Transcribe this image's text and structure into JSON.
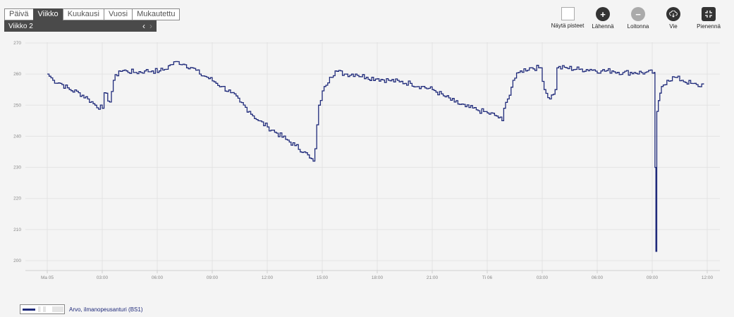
{
  "tabs": [
    "Päivä",
    "Viikko",
    "Kuukausi",
    "Vuosi",
    "Mukautettu"
  ],
  "active_tab": "Viikko",
  "week_label": "Viikko  2",
  "nav_prev": "‹",
  "nav_next": "›",
  "toolbar": {
    "show_points": "Näytä pisteet",
    "zoom_in": "Lähennä",
    "zoom_out": "Loitonna",
    "export": "Vie",
    "minimize": "Pienennä"
  },
  "legend": {
    "label": "Arvo, ilmanopeusanturi (BS1)"
  },
  "colors": {
    "series": "#1f2a7a",
    "grid": "#e3e3e3",
    "axis": "#cfcfcf"
  },
  "chart_data": {
    "type": "line",
    "ylim": [
      198,
      270
    ],
    "yticks": [
      200,
      210,
      220,
      230,
      240,
      250,
      260,
      270
    ],
    "xlim": [
      0,
      34
    ],
    "xticks": [
      {
        "v": 0,
        "label": "Ma 05"
      },
      {
        "v": 3,
        "label": "03:00"
      },
      {
        "v": 6,
        "label": "06:00"
      },
      {
        "v": 9,
        "label": "09:00"
      },
      {
        "v": 12,
        "label": "12:00"
      },
      {
        "v": 15,
        "label": "15:00"
      },
      {
        "v": 18,
        "label": "18:00"
      },
      {
        "v": 21,
        "label": "21:00"
      },
      {
        "v": 24,
        "label": "Ti 06"
      },
      {
        "v": 27,
        "label": "03:00"
      },
      {
        "v": 30,
        "label": "06:00"
      },
      {
        "v": 33,
        "label": "09:00"
      },
      {
        "v": 36,
        "label": "12:00"
      }
    ],
    "series": [
      {
        "name": "Arvo, ilmanopeusanturi (BS1)",
        "points": [
          [
            0.0,
            260
          ],
          [
            0.3,
            258
          ],
          [
            0.7,
            257
          ],
          [
            1.2,
            255
          ],
          [
            1.7,
            254
          ],
          [
            2.2,
            252
          ],
          [
            2.6,
            250
          ],
          [
            3.0,
            249
          ],
          [
            3.1,
            254
          ],
          [
            3.4,
            251
          ],
          [
            3.6,
            258
          ],
          [
            3.9,
            261
          ],
          [
            4.3,
            261
          ],
          [
            4.8,
            260.5
          ],
          [
            5.3,
            261
          ],
          [
            5.7,
            261
          ],
          [
            6.1,
            261
          ],
          [
            6.4,
            261.5
          ],
          [
            6.7,
            263
          ],
          [
            7.1,
            264
          ],
          [
            7.5,
            263
          ],
          [
            7.9,
            262
          ],
          [
            8.3,
            260
          ],
          [
            8.7,
            259
          ],
          [
            9.1,
            257.5
          ],
          [
            9.5,
            256
          ],
          [
            10.0,
            254
          ],
          [
            10.5,
            251
          ],
          [
            11.0,
            248
          ],
          [
            11.5,
            245
          ],
          [
            12.0,
            243
          ],
          [
            12.5,
            241
          ],
          [
            13.0,
            239
          ],
          [
            13.5,
            237
          ],
          [
            14.0,
            235
          ],
          [
            14.3,
            233
          ],
          [
            14.5,
            232
          ],
          [
            14.6,
            236
          ],
          [
            14.8,
            250
          ],
          [
            15.1,
            256
          ],
          [
            15.4,
            259
          ],
          [
            15.7,
            261
          ],
          [
            16.2,
            260
          ],
          [
            16.8,
            260
          ],
          [
            17.4,
            259
          ],
          [
            18.0,
            258.5
          ],
          [
            18.6,
            258
          ],
          [
            19.2,
            257.5
          ],
          [
            19.8,
            257
          ],
          [
            20.4,
            256
          ],
          [
            21.0,
            255
          ],
          [
            21.6,
            253
          ],
          [
            22.2,
            251
          ],
          [
            22.8,
            249.5
          ],
          [
            23.4,
            248.5
          ],
          [
            24.0,
            247.5
          ],
          [
            24.5,
            246.5
          ],
          [
            24.8,
            245
          ],
          [
            24.9,
            249
          ],
          [
            25.1,
            252
          ],
          [
            25.4,
            258
          ],
          [
            25.8,
            261
          ],
          [
            26.3,
            262
          ],
          [
            26.9,
            262
          ],
          [
            27.1,
            255
          ],
          [
            27.4,
            252
          ],
          [
            27.7,
            255
          ],
          [
            27.8,
            262
          ],
          [
            28.3,
            262
          ],
          [
            29.0,
            261.5
          ],
          [
            29.6,
            261.5
          ],
          [
            30.2,
            261
          ],
          [
            30.8,
            261
          ],
          [
            31.4,
            260.5
          ],
          [
            32.0,
            260.5
          ],
          [
            32.6,
            260.5
          ],
          [
            33.1,
            260.5
          ],
          [
            33.15,
            230
          ],
          [
            33.2,
            203
          ],
          [
            33.25,
            248
          ],
          [
            33.5,
            256
          ],
          [
            33.8,
            258
          ],
          [
            34.2,
            259
          ],
          [
            34.6,
            258
          ],
          [
            35.1,
            257
          ],
          [
            35.5,
            256
          ],
          [
            35.8,
            257
          ]
        ]
      }
    ]
  }
}
